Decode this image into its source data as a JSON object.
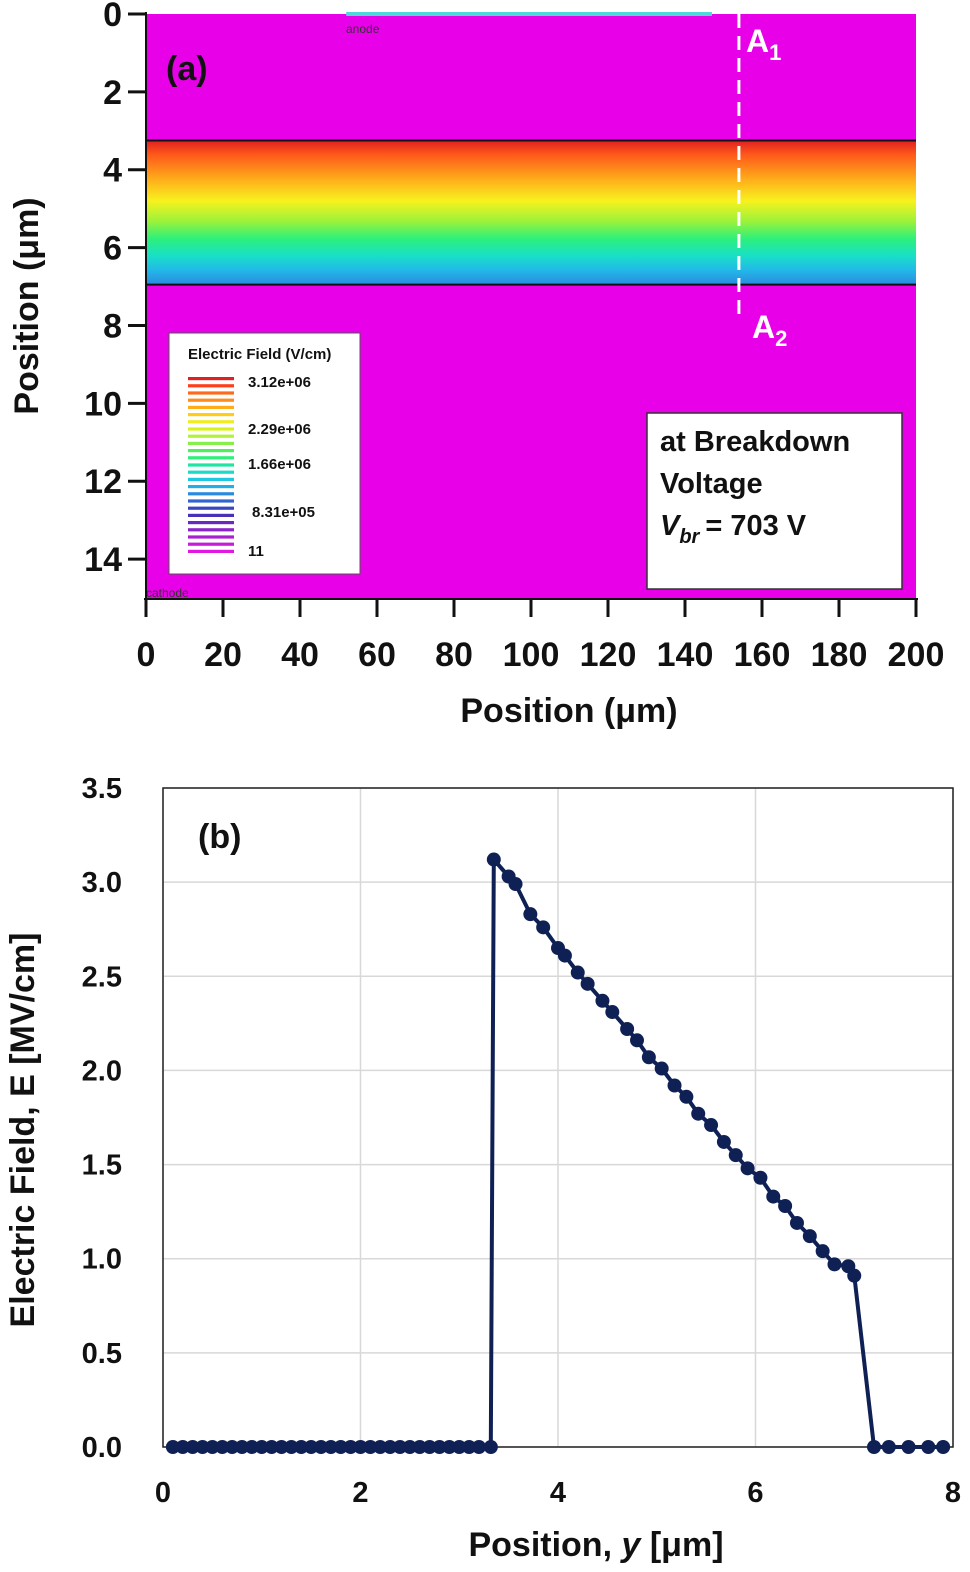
{
  "panel_a": {
    "label": "(a)",
    "ylabel": "Position (μm)",
    "xlabel": "Position (μm)",
    "anode_label": "anode",
    "cathode_label": "cathode",
    "cutline_top": {
      "main": "A",
      "sub": "1"
    },
    "cutline_bottom": {
      "main": "A",
      "sub": "2"
    },
    "info": {
      "line1": "at Breakdown",
      "line2": "Voltage",
      "v_symbol": "V",
      "v_sub": "br",
      "v_value": "= 703 V"
    },
    "legend": {
      "title": "Electric Field (V/cm)",
      "values": [
        "3.12e+06",
        "2.29e+06",
        "1.66e+06",
        "8.31e+05",
        "11"
      ]
    },
    "colors": {
      "background": "#e800e8",
      "anode_contact": "#4fd8d8",
      "cutline": "#ffffff"
    }
  },
  "chart_data": [
    {
      "type": "heatmap",
      "title": "",
      "xlabel": "Position (μm)",
      "ylabel": "Position (μm)",
      "xlim": [
        0,
        200
      ],
      "ylim": [
        15,
        0
      ],
      "xticks": [
        0,
        20,
        40,
        60,
        80,
        100,
        120,
        140,
        160,
        180,
        200
      ],
      "yticks": [
        0,
        2,
        4,
        6,
        8,
        10,
        12,
        14
      ],
      "field_region": {
        "y_start": 3.25,
        "y_end": 6.95,
        "e_max": 3120000.0,
        "e_min": 831000.0
      },
      "anode": {
        "x_start": 52,
        "x_end": 147
      },
      "cutline_x": 154
    },
    {
      "type": "line",
      "title": "",
      "xlabel": "Position, y [μm]",
      "ylabel": "Electric Field, E [MV/cm]",
      "xlim": [
        0,
        8
      ],
      "ylim": [
        0,
        3.5
      ],
      "xticks": [
        0,
        2,
        4,
        6,
        8
      ],
      "yticks": [
        "0.0",
        "0.5",
        "1.0",
        "1.5",
        "2.0",
        "2.5",
        "3.0",
        "3.5"
      ],
      "grid": true,
      "line_color": "#0f2055",
      "series": [
        {
          "x": [
            0.1,
            0.2,
            0.3,
            0.4,
            0.5,
            0.6,
            0.7,
            0.8,
            0.9,
            1.0,
            1.1,
            1.2,
            1.3,
            1.4,
            1.5,
            1.6,
            1.7,
            1.8,
            1.9,
            2.0,
            2.1,
            2.2,
            2.3,
            2.4,
            2.5,
            2.6,
            2.7,
            2.8,
            2.9,
            3.0,
            3.1,
            3.2,
            3.32,
            3.35,
            3.5,
            3.57,
            3.72,
            3.85,
            4.0,
            4.07,
            4.2,
            4.3,
            4.45,
            4.55,
            4.7,
            4.8,
            4.92,
            5.05,
            5.18,
            5.3,
            5.42,
            5.55,
            5.68,
            5.8,
            5.92,
            6.05,
            6.18,
            6.3,
            6.42,
            6.55,
            6.68,
            6.8,
            6.94,
            7.0,
            7.2,
            7.35,
            7.55,
            7.75,
            7.9
          ],
          "y": [
            0,
            0,
            0,
            0,
            0,
            0,
            0,
            0,
            0,
            0,
            0,
            0,
            0,
            0,
            0,
            0,
            0,
            0,
            0,
            0,
            0,
            0,
            0,
            0,
            0,
            0,
            0,
            0,
            0,
            0,
            0,
            0,
            0,
            3.12,
            3.03,
            2.99,
            2.83,
            2.76,
            2.65,
            2.61,
            2.52,
            2.46,
            2.37,
            2.31,
            2.22,
            2.16,
            2.07,
            2.01,
            1.92,
            1.86,
            1.77,
            1.71,
            1.62,
            1.55,
            1.48,
            1.43,
            1.33,
            1.28,
            1.19,
            1.12,
            1.04,
            0.97,
            0.96,
            0.91,
            0,
            0,
            0,
            0,
            0
          ]
        }
      ]
    }
  ]
}
